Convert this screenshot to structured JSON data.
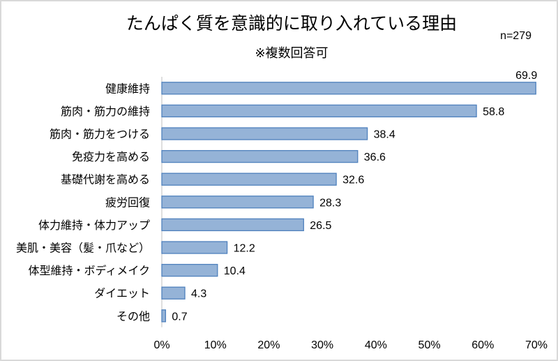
{
  "chart_data": {
    "type": "bar",
    "orientation": "horizontal",
    "title": "たんぱく質を意識的に取り入れている理由",
    "subtitle": "※複数回答可",
    "sample_note": "n=279",
    "xlabel": "",
    "ylabel": "",
    "xlim": [
      0,
      70
    ],
    "x_ticks": [
      "0%",
      "10%",
      "20%",
      "30%",
      "40%",
      "50%",
      "60%",
      "70%"
    ],
    "x_tick_values": [
      0,
      10,
      20,
      30,
      40,
      50,
      60,
      70
    ],
    "grid": false,
    "legend": "none",
    "categories": [
      "健康維持",
      "筋肉・筋力の維持",
      "筋肉・筋力をつける",
      "免疫力を高める",
      "基礎代謝を高める",
      "疲労回復",
      "体力維持・体力アップ",
      "美肌・美容（髪・爪など）",
      "体型維持・ボディメイク",
      "ダイエット",
      "その他"
    ],
    "values": [
      69.9,
      58.8,
      38.4,
      36.6,
      32.6,
      28.3,
      26.5,
      12.2,
      10.4,
      4.3,
      0.7
    ],
    "data_labels": [
      "69.9",
      "58.8",
      "38.4",
      "36.6",
      "32.6",
      "28.3",
      "26.5",
      "12.2",
      "10.4",
      "4.3",
      "0.7"
    ],
    "colors": {
      "bar_fill": "#95b3d7",
      "bar_stroke": "#4f81bd",
      "axis": "#bfbfbf"
    }
  }
}
